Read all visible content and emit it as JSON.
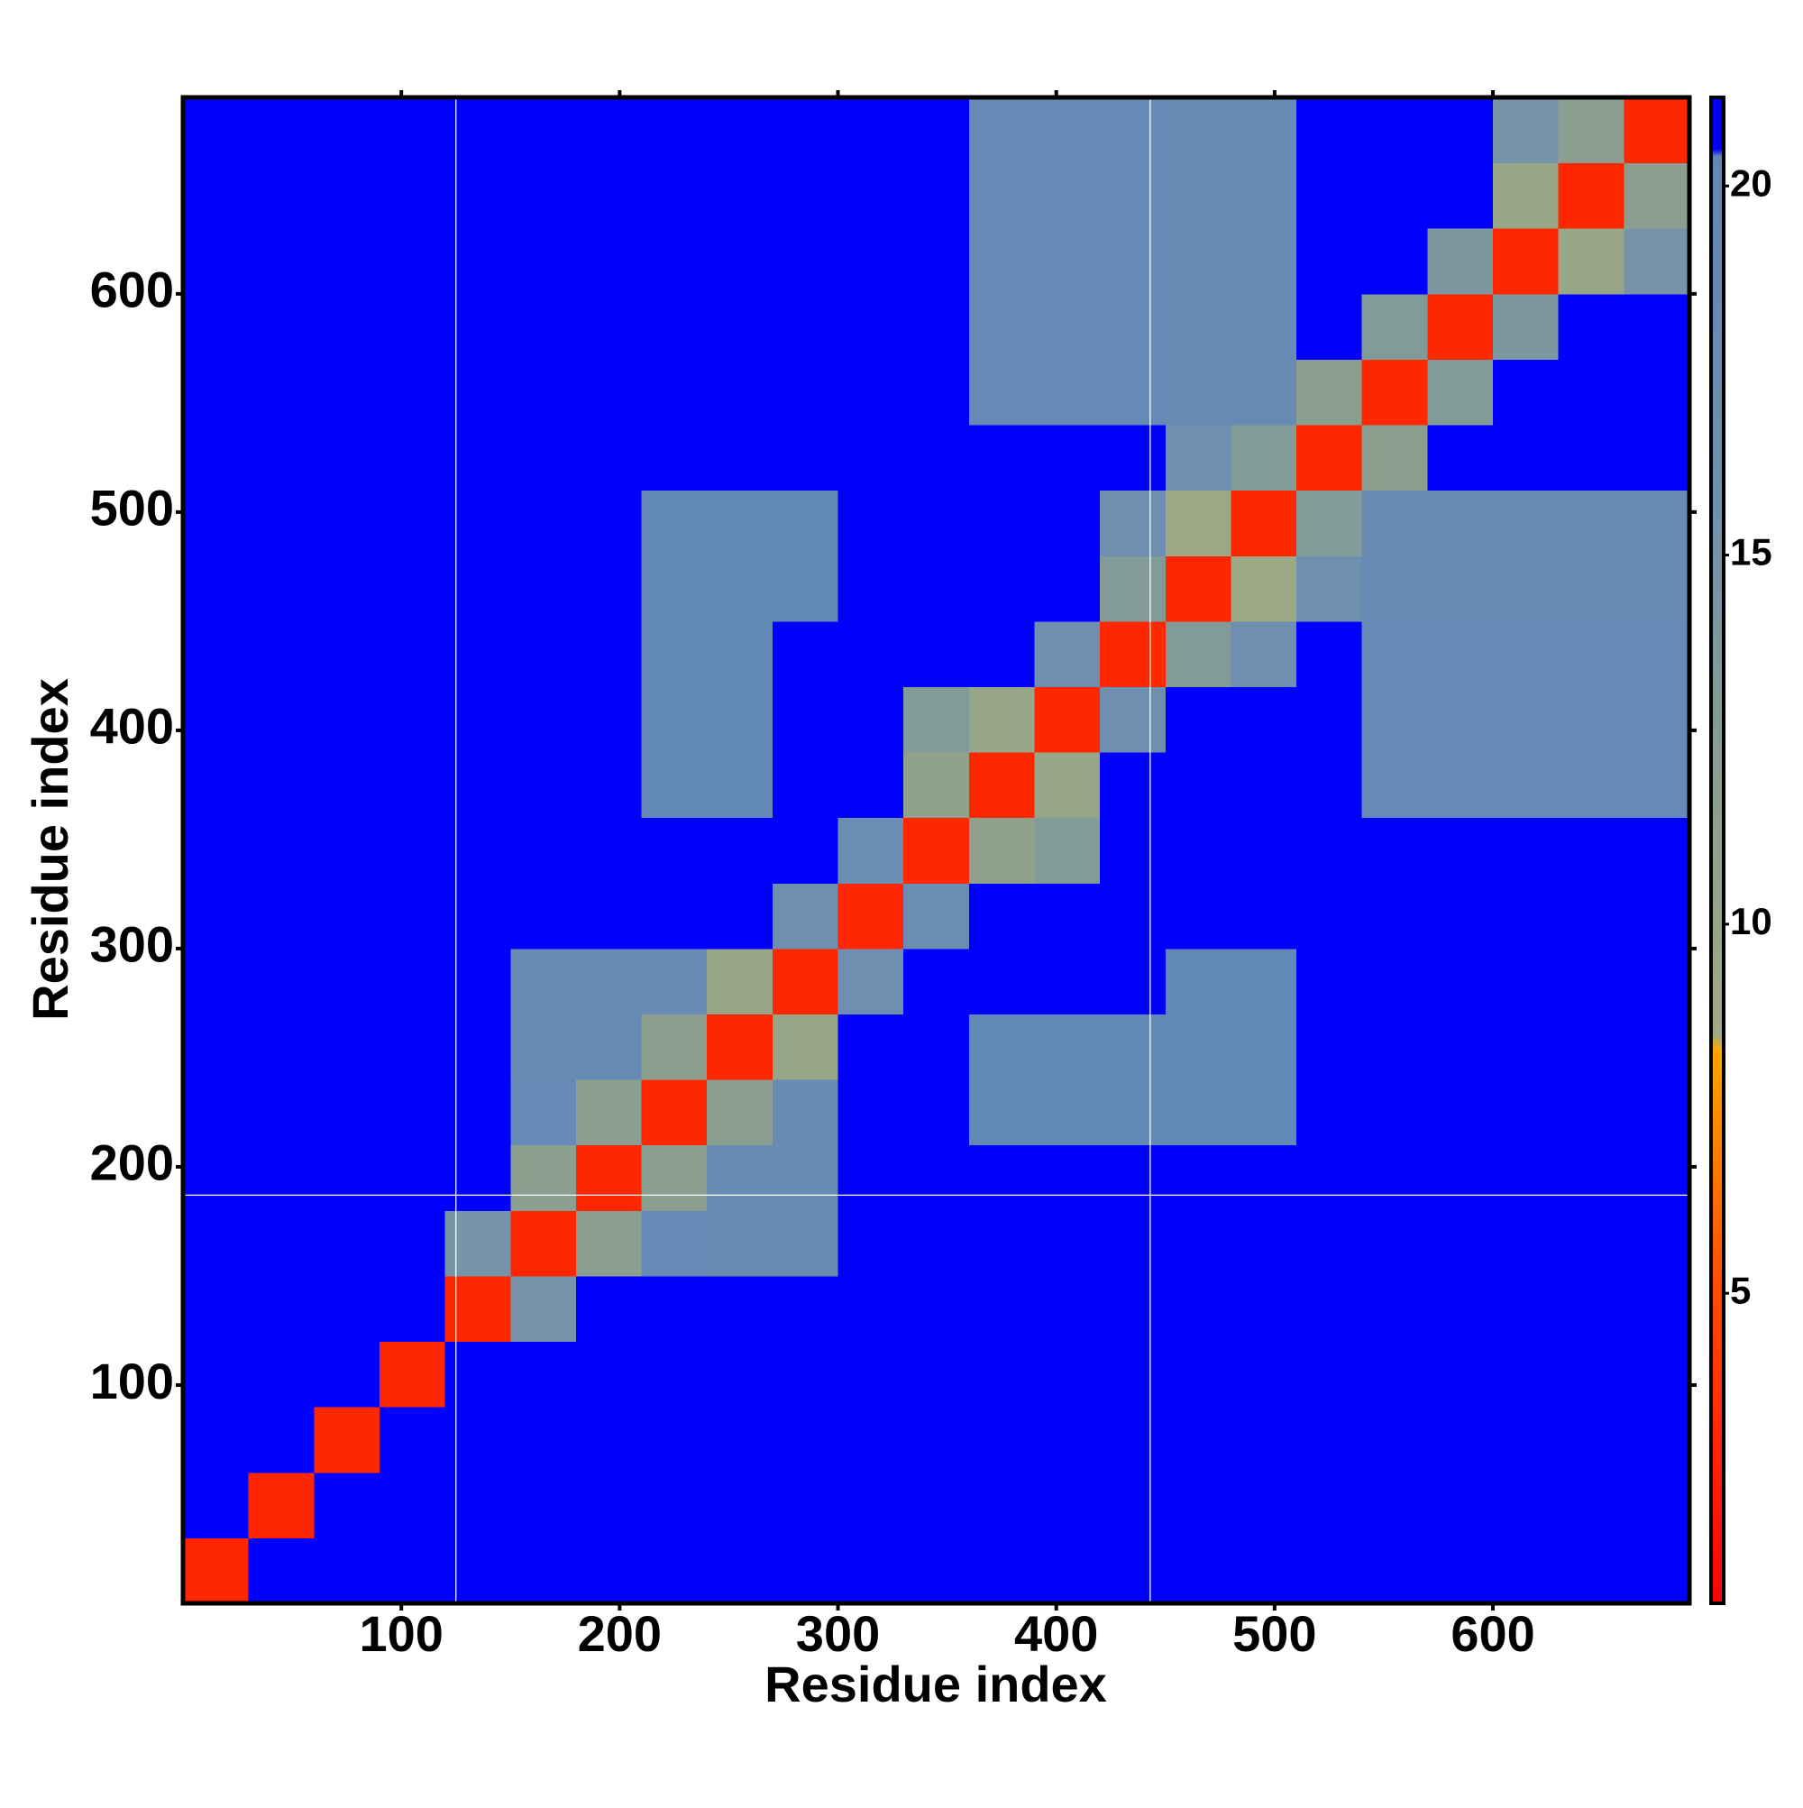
{
  "chart_data": {
    "type": "heatmap",
    "xlabel": "Residue index",
    "ylabel": "Residue index",
    "xlim": [
      0,
      690
    ],
    "ylim": [
      0,
      690
    ],
    "xticks": [
      100,
      200,
      300,
      400,
      500,
      600
    ],
    "yticks": [
      100,
      200,
      300,
      400,
      500,
      600
    ],
    "x_edges": [
      0,
      30,
      60,
      90,
      120,
      150,
      180,
      210,
      240,
      270,
      300,
      330,
      360,
      390,
      420,
      450,
      480,
      510,
      540,
      570,
      600,
      630,
      660,
      690
    ],
    "y_edges": [
      0,
      30,
      60,
      90,
      120,
      150,
      180,
      210,
      240,
      270,
      300,
      330,
      360,
      390,
      420,
      450,
      480,
      510,
      540,
      570,
      600,
      630,
      660,
      690
    ],
    "z": [
      [
        3,
        21,
        21,
        21,
        21,
        21,
        21,
        21,
        21,
        21,
        21,
        21,
        21,
        21,
        21,
        21,
        21,
        21,
        21,
        21,
        21,
        21,
        21
      ],
      [
        21,
        3,
        21,
        21,
        21,
        21,
        21,
        21,
        21,
        21,
        21,
        21,
        21,
        21,
        21,
        21,
        21,
        21,
        21,
        21,
        21,
        21,
        21
      ],
      [
        21,
        21,
        3,
        21,
        21,
        21,
        21,
        21,
        21,
        21,
        21,
        21,
        21,
        21,
        21,
        21,
        21,
        21,
        21,
        21,
        21,
        21,
        21
      ],
      [
        21,
        21,
        21,
        3,
        21,
        21,
        21,
        21,
        21,
        21,
        21,
        21,
        21,
        21,
        21,
        21,
        21,
        21,
        21,
        21,
        21,
        21,
        21
      ],
      [
        21,
        21,
        21,
        21,
        3,
        15,
        21,
        21,
        21,
        21,
        21,
        21,
        21,
        21,
        21,
        21,
        21,
        21,
        21,
        21,
        21,
        21,
        21
      ],
      [
        21,
        21,
        21,
        21,
        15,
        3,
        12,
        19,
        18,
        18,
        21,
        21,
        21,
        21,
        21,
        21,
        21,
        21,
        21,
        21,
        21,
        21,
        21
      ],
      [
        21,
        21,
        21,
        21,
        21,
        12,
        3,
        12,
        18,
        18,
        21,
        21,
        21,
        21,
        21,
        21,
        21,
        21,
        21,
        21,
        21,
        21,
        21
      ],
      [
        21,
        21,
        21,
        21,
        21,
        19,
        12,
        3,
        12,
        18,
        21,
        21,
        19.5,
        19.5,
        19.5,
        19.5,
        19.5,
        21,
        21,
        21,
        21,
        21,
        21
      ],
      [
        21,
        21,
        21,
        21,
        21,
        18,
        18,
        12,
        3,
        10,
        21,
        21,
        19.5,
        19.5,
        19.5,
        19.5,
        19.5,
        21,
        21,
        21,
        21,
        21,
        21
      ],
      [
        21,
        21,
        21,
        21,
        21,
        18,
        18,
        18,
        10,
        3,
        16,
        21,
        21,
        21,
        21,
        19.5,
        19.5,
        21,
        21,
        21,
        21,
        21,
        21
      ],
      [
        21,
        21,
        21,
        21,
        21,
        21,
        21,
        21,
        21,
        16,
        3,
        17,
        21,
        21,
        21,
        21,
        21,
        21,
        21,
        21,
        21,
        21,
        21
      ],
      [
        21,
        21,
        21,
        21,
        21,
        21,
        21,
        21,
        21,
        21,
        17,
        3,
        11,
        13,
        21,
        21,
        21,
        21,
        21,
        21,
        21,
        21,
        21
      ],
      [
        21,
        21,
        21,
        21,
        21,
        21,
        21,
        19.5,
        19.5,
        21,
        21,
        11,
        3,
        10,
        21,
        21,
        21,
        21,
        19,
        19,
        19,
        19,
        19
      ],
      [
        21,
        21,
        21,
        21,
        21,
        21,
        21,
        19.5,
        19.5,
        21,
        21,
        13,
        10,
        3,
        16,
        21,
        21,
        21,
        19,
        19,
        19,
        19,
        19
      ],
      [
        21,
        21,
        21,
        21,
        21,
        21,
        21,
        19.5,
        19.5,
        21,
        21,
        21,
        21,
        16,
        3,
        13,
        16,
        21,
        19,
        19,
        19,
        19,
        19
      ],
      [
        21,
        21,
        21,
        21,
        21,
        21,
        21,
        19.5,
        19.5,
        19.5,
        21,
        21,
        21,
        21,
        13,
        3,
        9,
        16,
        18,
        18,
        18,
        18,
        18
      ],
      [
        21,
        21,
        21,
        21,
        21,
        21,
        21,
        19.5,
        19.5,
        19.5,
        21,
        21,
        21,
        21,
        16,
        9,
        3,
        13,
        18,
        18,
        18,
        18,
        18
      ],
      [
        21,
        21,
        21,
        21,
        21,
        21,
        21,
        21,
        21,
        21,
        21,
        21,
        21,
        21,
        21,
        16,
        13,
        3,
        12,
        21,
        21,
        21,
        21
      ],
      [
        21,
        21,
        21,
        21,
        21,
        21,
        21,
        21,
        21,
        21,
        21,
        21,
        19,
        19,
        19,
        18,
        18,
        12,
        3,
        13,
        21,
        21,
        21
      ],
      [
        21,
        21,
        21,
        21,
        21,
        21,
        21,
        21,
        21,
        21,
        21,
        21,
        19,
        19,
        19,
        18,
        18,
        21,
        13,
        3,
        14,
        21,
        21
      ],
      [
        21,
        21,
        21,
        21,
        21,
        21,
        21,
        21,
        21,
        21,
        21,
        21,
        19,
        19,
        19,
        18,
        18,
        21,
        21,
        14,
        3,
        10,
        15
      ],
      [
        21,
        21,
        21,
        21,
        21,
        21,
        21,
        21,
        21,
        21,
        21,
        21,
        19,
        19,
        19,
        18,
        18,
        21,
        21,
        21,
        10,
        3,
        12
      ],
      [
        21,
        21,
        21,
        21,
        21,
        21,
        21,
        21,
        21,
        21,
        21,
        21,
        19,
        19,
        19,
        18,
        18,
        21,
        21,
        21,
        15,
        12,
        3
      ]
    ],
    "zlim": [
      0.8,
      21.2
    ],
    "colorbar_ticks": [
      5,
      10,
      15,
      20
    ],
    "colorscale": [
      [
        0.8,
        "#ff0000"
      ],
      [
        5,
        "#ff4a00"
      ],
      [
        8.3,
        "#ffa500"
      ],
      [
        8.5,
        "#a0aa84"
      ],
      [
        12,
        "#8a9f90"
      ],
      [
        16,
        "#6f8fb0"
      ],
      [
        20.4,
        "#5f87b8"
      ],
      [
        20.5,
        "#0000ff"
      ],
      [
        21.2,
        "#0000ff"
      ]
    ],
    "x_lines": [
      125,
      443
    ],
    "y_lines": [
      187
    ],
    "line_color": "#ffffff"
  }
}
